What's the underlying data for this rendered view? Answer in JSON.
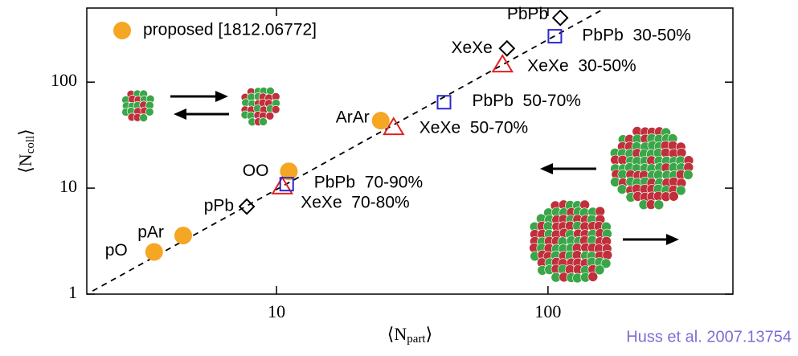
{
  "chart_data": {
    "type": "scatter",
    "log_x": true,
    "log_y": true,
    "xlabel": [
      "⟨N",
      "part",
      "⟩"
    ],
    "ylabel": [
      "⟨N",
      "coll",
      "⟩"
    ],
    "xlim": [
      2,
      480
    ],
    "ylim": [
      1,
      500
    ],
    "xticks": [
      10,
      100
    ],
    "yticks": [
      1,
      10,
      100
    ],
    "legend": "upper left",
    "series": [
      {
        "name": "proposed [1812.06772]",
        "color": "#f5a623",
        "marker": "circle",
        "x": [
          3.54,
          4.53,
          11.1,
          24.2
        ],
        "values": [
          2.5,
          3.57,
          14.4,
          43.3
        ],
        "point_labels": [
          "pO",
          "pAr",
          "OO",
          "ArAr"
        ]
      },
      {
        "color": "#000000",
        "marker": "diamond",
        "x": [
          7.77,
          111,
          70.6
        ],
        "values": [
          6.7,
          404,
          208
        ],
        "point_labels": [
          "pPb",
          "PbPb",
          "XeXe"
        ]
      },
      {
        "color": "#e02020",
        "marker": "triangle",
        "x": [
          10.5,
          27,
          68
        ],
        "values": [
          10.4,
          37.7,
          147
        ],
        "point_labels": [
          "XeXe  70-80%",
          "XeXe  50-70%",
          "XeXe  30-50%"
        ]
      },
      {
        "color": "#2a2ad0",
        "marker": "square",
        "x": [
          10.9,
          41.4,
          106
        ],
        "values": [
          10.9,
          64.6,
          271
        ],
        "point_labels": [
          "PbPb  70-90%",
          "PbPb  50-70%",
          "PbPb  30-50%"
        ]
      }
    ],
    "fit_line": {
      "x": [
        2.1,
        158
      ],
      "values": [
        1.07,
        480
      ]
    },
    "credit": "Huss et al. 2007.13754"
  }
}
